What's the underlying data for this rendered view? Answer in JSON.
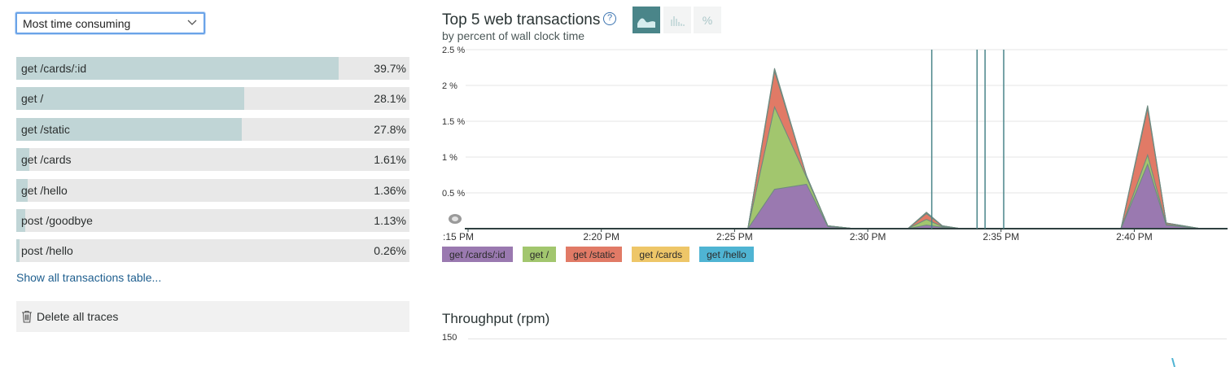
{
  "sort_select": {
    "selected": "Most time consuming"
  },
  "transactions": [
    {
      "name": "get /cards/:id",
      "percent_label": "39.7%",
      "percent": 39.7
    },
    {
      "name": "get /",
      "percent_label": "28.1%",
      "percent": 28.1
    },
    {
      "name": "get /static",
      "percent_label": "27.8%",
      "percent": 27.8
    },
    {
      "name": "get /cards",
      "percent_label": "1.61%",
      "percent": 1.61
    },
    {
      "name": "get /hello",
      "percent_label": "1.36%",
      "percent": 1.36
    },
    {
      "name": "post /goodbye",
      "percent_label": "1.13%",
      "percent": 1.13
    },
    {
      "name": "post /hello",
      "percent_label": "0.26%",
      "percent": 0.26
    }
  ],
  "links": {
    "show_all": "Show all transactions table..."
  },
  "actions": {
    "delete_traces": "Delete all traces",
    "delete_icon": "trash-icon"
  },
  "chart_header": {
    "title": "Top 5 web transactions",
    "subtitle": "by percent of wall clock time",
    "help_icon": "?",
    "view_buttons": [
      {
        "icon": "area-chart-icon",
        "active": true
      },
      {
        "icon": "histogram-icon",
        "active": false
      },
      {
        "icon": "percent-icon",
        "label": "%",
        "active": false
      }
    ]
  },
  "colors": {
    "purple": "#9a79b0",
    "green": "#a2c66e",
    "red": "#e17a66",
    "yellow": "#eec668",
    "blue": "#4fb4d3",
    "bar_fill": "#c0d5d6",
    "active_button": "#4a8589"
  },
  "chart_data": {
    "type": "area",
    "title": "Top 5 web transactions",
    "subtitle": "by percent of wall clock time",
    "y_ticks": [
      "2.5 %",
      "2 %",
      "1.5 %",
      "1 %",
      "0.5 %"
    ],
    "ylim": [
      0,
      2.5
    ],
    "x_ticks": [
      ":15 PM",
      "2:20 PM",
      "2:25 PM",
      "2:30 PM",
      "2:35 PM",
      "2:40 PM"
    ],
    "x_tick_minutes": [
      15,
      20,
      25,
      30,
      35,
      40
    ],
    "xlim_minutes": [
      15,
      43.5
    ],
    "x": [
      15,
      25.5,
      26.5,
      27.7,
      28.5,
      29.5,
      31.5,
      32.2,
      32.8,
      33.5,
      34.5,
      35.5,
      39.5,
      40.5,
      41.2,
      42.5,
      43.5
    ],
    "series": [
      {
        "name": "get /cards/:id",
        "color": "#9a79b0",
        "values": [
          0,
          0,
          0.55,
          0.62,
          0.03,
          0,
          0,
          0.05,
          0.02,
          0,
          0,
          0,
          0,
          0.9,
          0.05,
          0,
          0
        ]
      },
      {
        "name": "get /",
        "color": "#a2c66e",
        "values": [
          0,
          0,
          1.15,
          0.1,
          0.01,
          0,
          0,
          0.08,
          0.01,
          0,
          0,
          0,
          0,
          0.13,
          0.01,
          0,
          0
        ]
      },
      {
        "name": "get /static",
        "color": "#e17a66",
        "values": [
          0,
          0,
          0.5,
          0.02,
          0,
          0,
          0,
          0.08,
          0.01,
          0,
          0,
          0,
          0,
          0.65,
          0.02,
          0,
          0
        ]
      },
      {
        "name": "get /cards",
        "color": "#eec668",
        "values": [
          0,
          0,
          0.02,
          0,
          0,
          0,
          0,
          0.01,
          0,
          0,
          0,
          0,
          0,
          0.02,
          0,
          0,
          0
        ]
      },
      {
        "name": "get /hello",
        "color": "#4fb4d3",
        "values": [
          0,
          0,
          0.02,
          0,
          0,
          0,
          0,
          0.01,
          0,
          0,
          0,
          0,
          0,
          0.02,
          0,
          0,
          0
        ]
      }
    ],
    "event_markers_minutes": [
      32.4,
      34.1,
      34.4,
      35.1
    ],
    "legend": [
      "get /cards/:id",
      "get /",
      "get /static",
      "get /cards",
      "get /hello"
    ],
    "legend_placement": "bottom-left",
    "grid": true
  },
  "throughput": {
    "title": "Throughput (rpm)",
    "y_tick": "150"
  }
}
